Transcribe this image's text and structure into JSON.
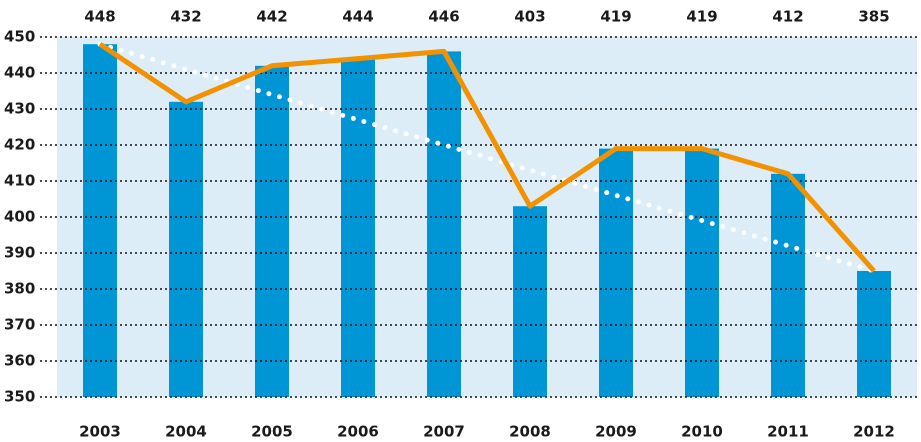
{
  "chart_data": {
    "type": "bar",
    "categories": [
      "2003",
      "2004",
      "2005",
      "2006",
      "2007",
      "2008",
      "2009",
      "2010",
      "2011",
      "2012"
    ],
    "values": [
      448,
      432,
      442,
      444,
      446,
      403,
      419,
      419,
      412,
      385
    ],
    "color": "#0096d6",
    "line_color": "#f39200",
    "trendline": {
      "color": "#ffffff",
      "values": [
        448,
        385
      ]
    },
    "ylim": [
      350,
      450
    ],
    "yticks": [
      350,
      360,
      370,
      380,
      390,
      400,
      410,
      420,
      430,
      440,
      450
    ],
    "grid": true
  }
}
